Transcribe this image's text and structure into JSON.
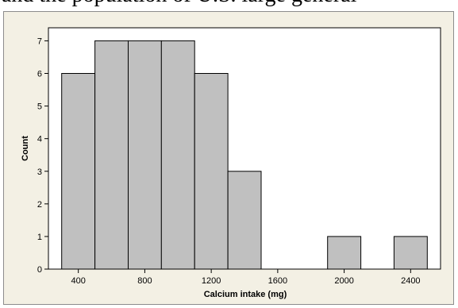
{
  "context_text": "and the population of U.S. large general",
  "chart_data": {
    "type": "bar",
    "subtype": "histogram",
    "xlabel": "Calcium intake (mg)",
    "ylabel": "Count",
    "bin_width": 200,
    "bin_centers": [
      400,
      600,
      800,
      1000,
      1200,
      1400,
      1600,
      1800,
      2000,
      2200,
      2400
    ],
    "values": [
      6,
      7,
      7,
      7,
      6,
      3,
      0,
      0,
      1,
      0,
      1
    ],
    "xlim": [
      220,
      2580
    ],
    "ylim": [
      0,
      7.4
    ],
    "x_ticks": [
      400,
      800,
      1200,
      1600,
      2000,
      2400
    ],
    "y_ticks": [
      0,
      1,
      2,
      3,
      4,
      5,
      6,
      7
    ],
    "grid": false,
    "legend": false,
    "colors": {
      "bar_fill": "#c0c0c0",
      "bar_stroke": "#000000",
      "plot_background": "#ffffff",
      "frame_background": "#f3f0e4"
    }
  }
}
